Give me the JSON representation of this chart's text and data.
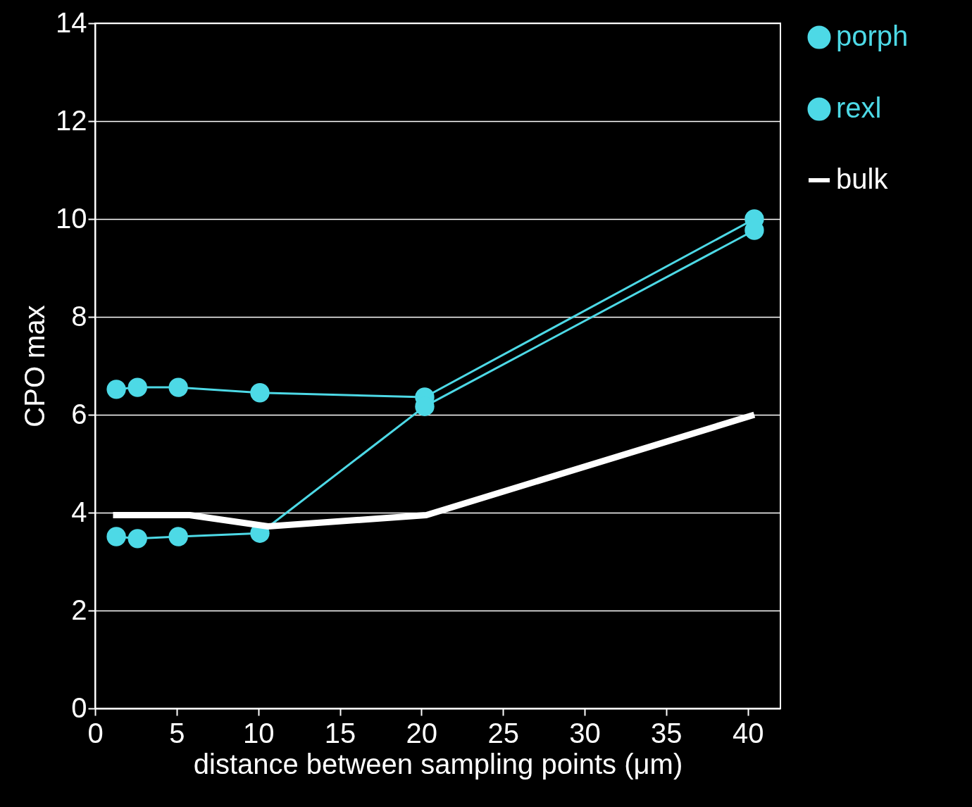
{
  "chart_data": {
    "type": "line",
    "xlabel": "distance  between  sampling  points  (μm)",
    "ylabel": "CPO  max",
    "xlim": [
      0,
      42
    ],
    "ylim": [
      0,
      14
    ],
    "xticks": [
      0,
      5,
      10,
      15,
      20,
      25,
      30,
      35,
      40
    ],
    "yticks": [
      0,
      2,
      4,
      6,
      8,
      10,
      12,
      14
    ],
    "grid": "y",
    "legend": "right",
    "series": [
      {
        "name": "porph",
        "color": "#4dd9e6",
        "marker": "circle",
        "x": [
          1.3,
          2.6,
          5.1,
          10.1,
          20.2,
          40.4
        ],
        "values": [
          6.52,
          6.56,
          6.56,
          6.45,
          6.36,
          10.0
        ]
      },
      {
        "name": "rexl",
        "color": "#4dd9e6",
        "marker": "circle",
        "x": [
          1.3,
          2.6,
          5.1,
          10.1,
          20.2,
          40.4
        ],
        "values": [
          3.51,
          3.47,
          3.51,
          3.58,
          6.17,
          9.77
        ]
      },
      {
        "name": "bulk",
        "color": "#ffffff",
        "marker": "none",
        "x": [
          1.1,
          5.8,
          10.6,
          20.3,
          40.4
        ],
        "values": [
          3.95,
          3.95,
          3.72,
          3.95,
          6.0
        ]
      }
    ]
  }
}
